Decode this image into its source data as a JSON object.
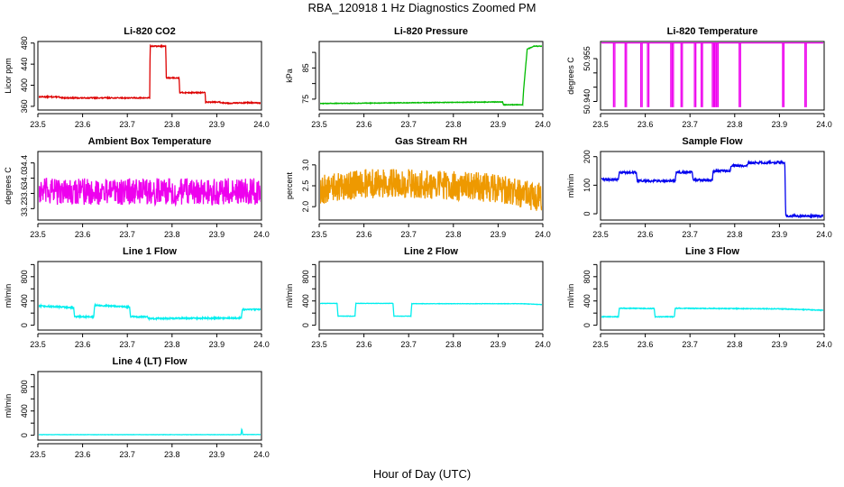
{
  "figure": {
    "title": "RBA_120918  1 Hz Diagnostics Zoomed PM",
    "xlabel": "Hour of Day (UTC)"
  },
  "chart_data": [
    {
      "type": "line",
      "title": "Li-820 CO2",
      "ylabel": "Licor ppm",
      "color": "#dd0000",
      "xlim": [
        23.5,
        24.0
      ],
      "ylim": [
        353,
        483
      ],
      "xticks": [
        23.5,
        23.6,
        23.7,
        23.8,
        23.9,
        24.0
      ],
      "xtick_labels": [
        "23.5",
        "23.6",
        "23.7",
        "23.8",
        "23.9",
        "24.0"
      ],
      "yticks": [
        360,
        400,
        440,
        480
      ],
      "ytick_labels": [
        "360",
        "400",
        "440",
        "480"
      ],
      "series": [
        {
          "name": "CO2",
          "noise": 1,
          "x": [
            23.5,
            23.548,
            23.549,
            23.75,
            23.751,
            23.786,
            23.787,
            23.816,
            23.817,
            23.874,
            23.875,
            23.905,
            23.91,
            23.93,
            23.97,
            24.0
          ],
          "y": [
            378,
            378,
            376,
            376,
            474,
            474,
            414,
            414,
            386,
            386,
            368,
            368,
            367,
            366,
            367,
            366
          ]
        }
      ]
    },
    {
      "type": "line",
      "title": "Li-820 Pressure",
      "ylabel": "kPa",
      "color": "#00bb00",
      "xlim": [
        23.5,
        24.0
      ],
      "ylim": [
        71.5,
        93.5
      ],
      "xticks": [
        23.5,
        23.6,
        23.7,
        23.8,
        23.9,
        24.0
      ],
      "xtick_labels": [
        "23.5",
        "23.6",
        "23.7",
        "23.8",
        "23.9",
        "24.0"
      ],
      "yticks": [
        75,
        80,
        85,
        90
      ],
      "ytick_labels": [
        "75",
        "",
        "85",
        ""
      ],
      "series": [
        {
          "name": "Pressure",
          "noise": 0.1,
          "x": [
            23.5,
            23.6,
            23.75,
            23.91,
            23.912,
            23.955,
            23.957,
            23.965,
            23.98,
            24.0
          ],
          "y": [
            73.6,
            73.7,
            73.9,
            74.1,
            73.2,
            73.2,
            78,
            91,
            92,
            92
          ]
        }
      ]
    },
    {
      "type": "line",
      "title": "Li-820 Temperature",
      "ylabel": "degrees C",
      "color": "#ee00ee",
      "xlim": [
        23.5,
        24.0
      ],
      "ylim": [
        50.937,
        50.961
      ],
      "xticks": [
        23.5,
        23.6,
        23.7,
        23.8,
        23.9,
        24.0
      ],
      "xtick_labels": [
        "23.5",
        "23.6",
        "23.7",
        "23.8",
        "23.9",
        "24.0"
      ],
      "yticks": [
        50.94,
        50.945,
        50.95,
        50.955
      ],
      "ytick_labels": [
        "50.940",
        "",
        "",
        "50.955"
      ],
      "baseline": 50.9605,
      "drop_value": 50.938,
      "drops": [
        23.529,
        23.555,
        23.59,
        23.605,
        23.657,
        23.66,
        23.68,
        23.71,
        23.725,
        23.75,
        23.755,
        23.76,
        23.81,
        23.907,
        23.957
      ],
      "series": [
        {
          "name": "Temperature",
          "x": [
            23.5,
            24.0
          ],
          "y": [
            50.9605,
            50.9605
          ]
        }
      ]
    },
    {
      "type": "line",
      "title": "Ambient Box Temperature",
      "ylabel": "degrees C",
      "color": "#ee00ee",
      "xlim": [
        23.5,
        24.0
      ],
      "ylim": [
        32.9,
        34.7
      ],
      "xticks": [
        23.5,
        23.6,
        23.7,
        23.8,
        23.9,
        24.0
      ],
      "xtick_labels": [
        "23.5",
        "23.6",
        "23.7",
        "23.8",
        "23.9",
        "24.0"
      ],
      "yticks": [
        33.2,
        33.6,
        34.0,
        34.4
      ],
      "ytick_labels": [
        "33.2",
        "33.6",
        "34.0",
        "34.4"
      ],
      "series": [
        {
          "name": "Ambient",
          "noise": 0.35,
          "x": [
            23.5,
            24.0
          ],
          "y": [
            33.65,
            33.65
          ]
        }
      ]
    },
    {
      "type": "line",
      "title": "Gas Stream RH",
      "ylabel": "percent",
      "color": "#ee9900",
      "xlim": [
        23.5,
        24.0
      ],
      "ylim": [
        1.68,
        3.32
      ],
      "xticks": [
        23.5,
        23.6,
        23.7,
        23.8,
        23.9,
        24.0
      ],
      "xtick_labels": [
        "23.5",
        "23.6",
        "23.7",
        "23.8",
        "23.9",
        "24.0"
      ],
      "yticks": [
        2.0,
        2.5,
        3.0
      ],
      "ytick_labels": [
        "2.0",
        "2.5",
        "3.0"
      ],
      "series": [
        {
          "name": "RH",
          "noise": 0.35,
          "x": [
            23.5,
            23.6,
            23.7,
            23.8,
            23.9,
            24.0
          ],
          "y": [
            2.4,
            2.55,
            2.55,
            2.5,
            2.45,
            2.2
          ]
        }
      ]
    },
    {
      "type": "line",
      "title": "Sample Flow",
      "ylabel": "ml/min",
      "color": "#0000ee",
      "xlim": [
        23.5,
        24.0
      ],
      "ylim": [
        -22,
        218
      ],
      "xticks": [
        23.5,
        23.6,
        23.7,
        23.8,
        23.9,
        24.0
      ],
      "xtick_labels": [
        "23.5",
        "23.6",
        "23.7",
        "23.8",
        "23.9",
        "24.0"
      ],
      "yticks": [
        0,
        100,
        200
      ],
      "ytick_labels": [
        "0",
        "100",
        "200"
      ],
      "series": [
        {
          "name": "Sample Flow",
          "noise": 4,
          "x": [
            23.5,
            23.54,
            23.542,
            23.58,
            23.582,
            23.667,
            23.669,
            23.705,
            23.707,
            23.75,
            23.752,
            23.79,
            23.792,
            23.828,
            23.83,
            23.9,
            23.912,
            23.914,
            24.0
          ],
          "y": [
            120,
            120,
            145,
            145,
            115,
            115,
            145,
            145,
            118,
            118,
            150,
            150,
            168,
            168,
            178,
            180,
            178,
            -8,
            -8
          ]
        }
      ]
    },
    {
      "type": "line",
      "title": "Line 1 Flow",
      "ylabel": "ml/min",
      "color": "#00eeee",
      "xlim": [
        23.5,
        24.0
      ],
      "ylim": [
        -80,
        1050
      ],
      "xticks": [
        23.5,
        23.6,
        23.7,
        23.8,
        23.9,
        24.0
      ],
      "xtick_labels": [
        "23.5",
        "23.6",
        "23.7",
        "23.8",
        "23.9",
        "24.0"
      ],
      "yticks": [
        0,
        200,
        400,
        600,
        800,
        1000
      ],
      "ytick_labels": [
        "0",
        "",
        "400",
        "",
        "800",
        ""
      ],
      "series": [
        {
          "name": "Line 1",
          "noise": 12,
          "x": [
            23.5,
            23.501,
            23.58,
            23.582,
            23.625,
            23.627,
            23.705,
            23.707,
            23.745,
            23.747,
            23.955,
            23.957,
            24.0
          ],
          "y": [
            150,
            320,
            290,
            140,
            140,
            330,
            300,
            140,
            140,
            110,
            120,
            260,
            260
          ]
        }
      ]
    },
    {
      "type": "line",
      "title": "Line 2 Flow",
      "ylabel": "ml/min",
      "color": "#00eeee",
      "xlim": [
        23.5,
        24.0
      ],
      "ylim": [
        -80,
        1050
      ],
      "xticks": [
        23.5,
        23.6,
        23.7,
        23.8,
        23.9,
        24.0
      ],
      "xtick_labels": [
        "23.5",
        "23.6",
        "23.7",
        "23.8",
        "23.9",
        "24.0"
      ],
      "yticks": [
        0,
        200,
        400,
        600,
        800,
        1000
      ],
      "ytick_labels": [
        "0",
        "",
        "400",
        "",
        "800",
        ""
      ],
      "series": [
        {
          "name": "Line 2",
          "noise": 3,
          "x": [
            23.5,
            23.54,
            23.542,
            23.58,
            23.582,
            23.665,
            23.667,
            23.705,
            23.707,
            23.955,
            24.0
          ],
          "y": [
            360,
            360,
            150,
            150,
            360,
            360,
            150,
            150,
            355,
            355,
            340
          ]
        }
      ]
    },
    {
      "type": "line",
      "title": "Line 3 Flow",
      "ylabel": "ml/min",
      "color": "#00eeee",
      "xlim": [
        23.5,
        24.0
      ],
      "ylim": [
        -80,
        1050
      ],
      "xticks": [
        23.5,
        23.6,
        23.7,
        23.8,
        23.9,
        24.0
      ],
      "xtick_labels": [
        "23.5",
        "23.6",
        "23.7",
        "23.8",
        "23.9",
        "24.0"
      ],
      "yticks": [
        0,
        200,
        400,
        600,
        800,
        1000
      ],
      "ytick_labels": [
        "0",
        "",
        "400",
        "",
        "800",
        ""
      ],
      "series": [
        {
          "name": "Line 3",
          "noise": 6,
          "x": [
            23.5,
            23.501,
            23.505,
            23.54,
            23.542,
            23.62,
            23.622,
            23.665,
            23.667,
            23.9,
            23.95,
            24.0
          ],
          "y": [
            250,
            140,
            140,
            140,
            280,
            275,
            140,
            140,
            280,
            270,
            260,
            245
          ]
        }
      ]
    },
    {
      "type": "line",
      "title": "Line 4 (LT) Flow",
      "ylabel": "ml/min",
      "color": "#00eeee",
      "xlim": [
        23.5,
        24.0
      ],
      "ylim": [
        -80,
        1050
      ],
      "xticks": [
        23.5,
        23.6,
        23.7,
        23.8,
        23.9,
        24.0
      ],
      "xtick_labels": [
        "23.5",
        "23.6",
        "23.7",
        "23.8",
        "23.9",
        "24.0"
      ],
      "yticks": [
        0,
        200,
        400,
        600,
        800,
        1000
      ],
      "ytick_labels": [
        "0",
        "",
        "400",
        "",
        "800",
        ""
      ],
      "series": [
        {
          "name": "Line 4",
          "noise": 2,
          "x": [
            23.5,
            23.954,
            23.956,
            23.958,
            23.96,
            24.0
          ],
          "y": [
            10,
            10,
            110,
            10,
            12,
            12
          ]
        }
      ]
    }
  ]
}
